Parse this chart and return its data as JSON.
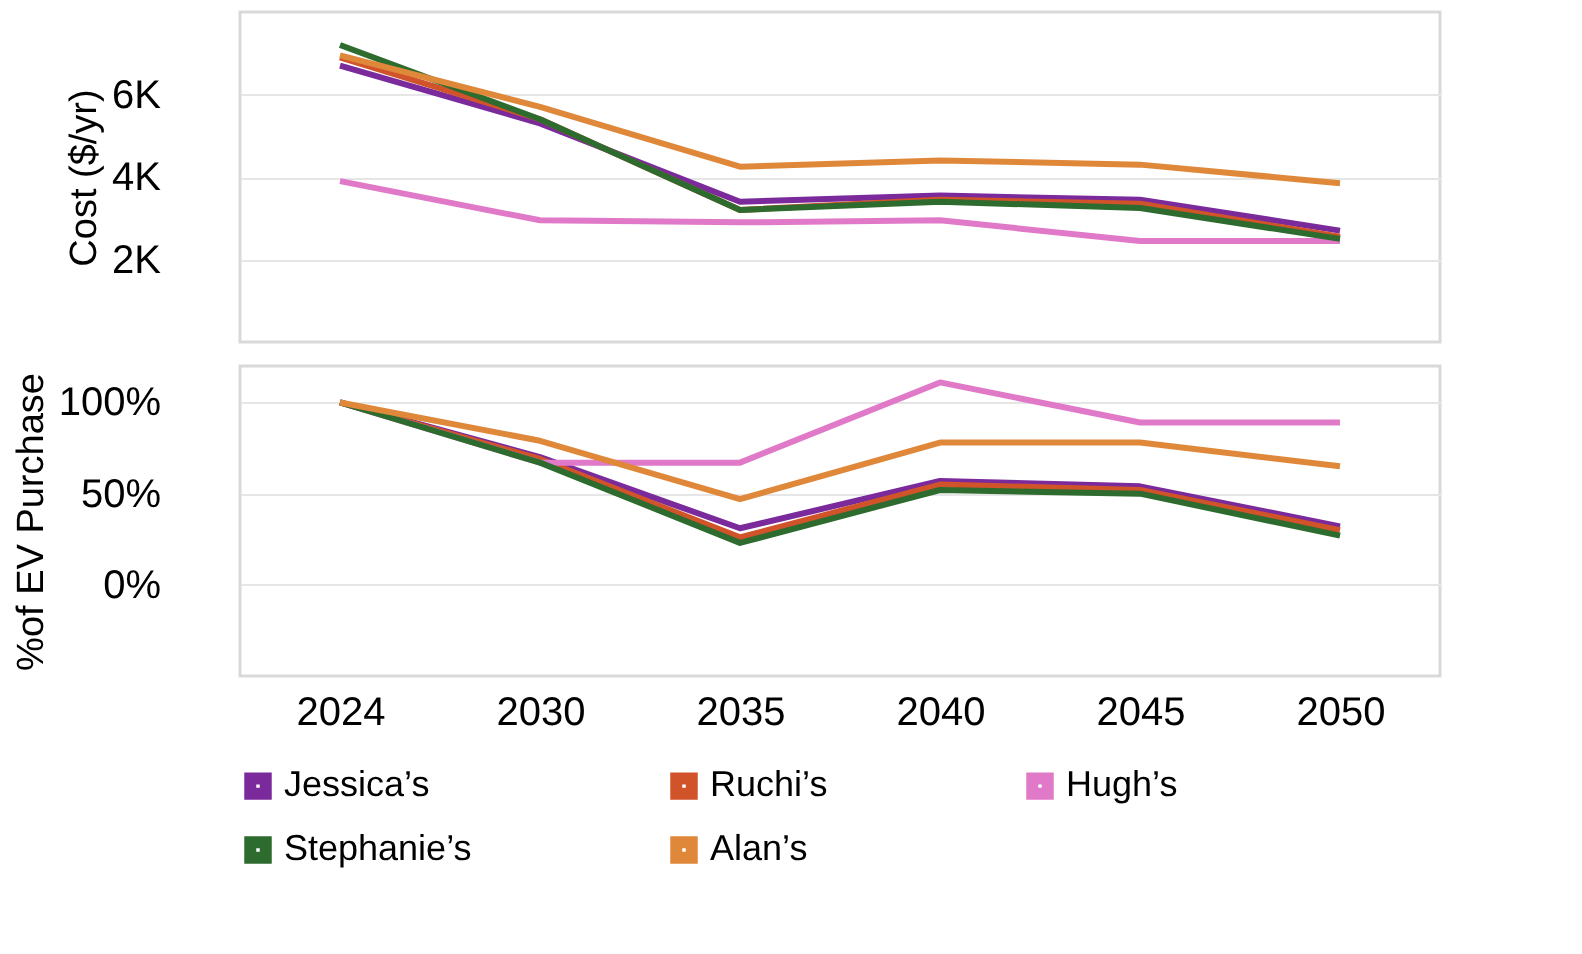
{
  "chart_data": [
    {
      "type": "line",
      "ylabel": "Cost ($/yr)",
      "categories": [
        "2024",
        "2030",
        "2035",
        "2040",
        "2045",
        "2050"
      ],
      "ylim": [
        0,
        8000
      ],
      "yticks": [
        {
          "value": 2000,
          "label": "2K"
        },
        {
          "value": 4000,
          "label": "4K"
        },
        {
          "value": 6000,
          "label": "6K"
        }
      ],
      "grid": "y",
      "tick_labels": "y",
      "legend": false,
      "line_style": "solid",
      "marker": "none",
      "series": [
        {
          "color": "#7b2a9c",
          "values": [
            6700,
            5300,
            3400,
            3550,
            3450,
            2700
          ]
        },
        {
          "color": "#d0532a",
          "values": [
            6900,
            5400,
            3200,
            3450,
            3350,
            2550
          ]
        },
        {
          "color": "#e07ac8",
          "values": [
            3900,
            2950,
            2900,
            2950,
            2450,
            2450
          ]
        },
        {
          "color": "#2e6b2e",
          "values": [
            7200,
            5400,
            3200,
            3400,
            3250,
            2500
          ]
        },
        {
          "color": "#e0883a",
          "values": [
            6950,
            5700,
            4250,
            4400,
            4300,
            3850
          ]
        }
      ]
    },
    {
      "type": "line",
      "ylabel": "%of EV Purchase",
      "categories": [
        "2024",
        "2030",
        "2035",
        "2040",
        "2045",
        "2050"
      ],
      "ylim": [
        -50,
        120
      ],
      "yticks": [
        {
          "value": 0,
          "label": "0%"
        },
        {
          "value": 50,
          "label": "50%"
        },
        {
          "value": 100,
          "label": "100%"
        }
      ],
      "grid": "y",
      "legend": "bottom",
      "line_style": "solid",
      "marker": "none",
      "series": [
        {
          "name": "Jessica’s",
          "color": "#7b2a9c",
          "values": [
            100,
            70,
            31,
            57,
            54,
            32
          ]
        },
        {
          "name": "Ruchi’s",
          "color": "#d0532a",
          "values": [
            100,
            69,
            26,
            55,
            52,
            30
          ]
        },
        {
          "name": "Hugh’s",
          "color": "#e07ac8",
          "values": [
            100,
            67,
            67,
            111,
            89,
            89
          ]
        },
        {
          "name": "Stephanie’s",
          "color": "#2e6b2e",
          "values": [
            100,
            67,
            23,
            52,
            50,
            27
          ]
        },
        {
          "name": "Alan’s",
          "color": "#e0883a",
          "values": [
            100,
            79,
            47,
            78,
            78,
            65
          ]
        }
      ]
    }
  ]
}
